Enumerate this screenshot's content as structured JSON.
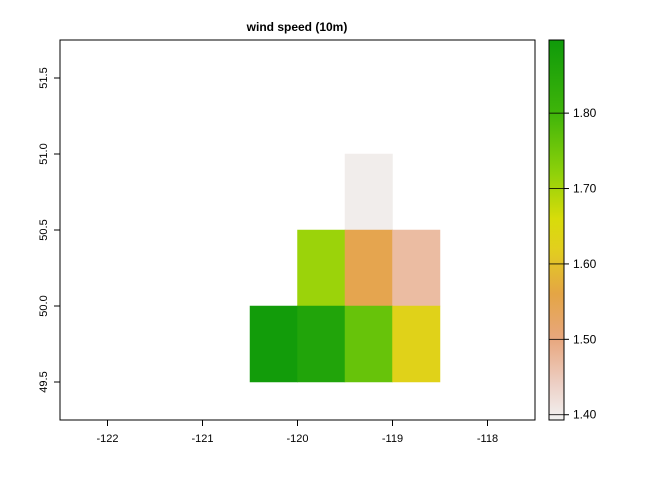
{
  "chart_data": {
    "type": "heatmap",
    "title": "wind speed (10m)",
    "xlabel": "",
    "ylabel": "",
    "xlim": [
      -122.5,
      -117.5
    ],
    "ylim": [
      49.25,
      51.75
    ],
    "x_ticks": [
      -122,
      -121,
      -120,
      -119,
      -118
    ],
    "x_tick_labels": [
      "-122",
      "-121",
      "-120",
      "-119",
      "-118"
    ],
    "y_ticks": [
      49.5,
      50.0,
      50.5,
      51.0,
      51.5
    ],
    "y_tick_labels": [
      "49.5",
      "50.0",
      "50.5",
      "51.0",
      "51.5"
    ],
    "cell_size": 0.5,
    "grid": false,
    "cells": [
      {
        "lon": -119.25,
        "lat": 50.75,
        "value": 1.4
      },
      {
        "lon": -119.75,
        "lat": 50.25,
        "value": 1.71
      },
      {
        "lon": -119.25,
        "lat": 50.25,
        "value": 1.55
      },
      {
        "lon": -118.75,
        "lat": 50.25,
        "value": 1.47
      },
      {
        "lon": -120.25,
        "lat": 49.75,
        "value": 1.89
      },
      {
        "lon": -119.75,
        "lat": 49.75,
        "value": 1.86
      },
      {
        "lon": -119.25,
        "lat": 49.75,
        "value": 1.76
      },
      {
        "lon": -118.75,
        "lat": 49.75,
        "value": 1.63
      }
    ],
    "colorbar": {
      "min": 1.393,
      "max": 1.897,
      "ticks": [
        1.4,
        1.5,
        1.6,
        1.7,
        1.8
      ],
      "tick_labels": [
        "1.40",
        "1.50",
        "1.60",
        "1.70",
        "1.80"
      ],
      "legend_position": "right",
      "colors": [
        {
          "value": 1.393,
          "color": "#f2f2f2"
        },
        {
          "value": 1.44,
          "color": "#edd0c6"
        },
        {
          "value": 1.5,
          "color": "#e8a77e"
        },
        {
          "value": 1.56,
          "color": "#e4a545"
        },
        {
          "value": 1.62,
          "color": "#e2cf1e"
        },
        {
          "value": 1.66,
          "color": "#d8dc0a"
        },
        {
          "value": 1.72,
          "color": "#8fd10a"
        },
        {
          "value": 1.8,
          "color": "#3fb50a"
        },
        {
          "value": 1.897,
          "color": "#0f9a0a"
        }
      ]
    }
  }
}
